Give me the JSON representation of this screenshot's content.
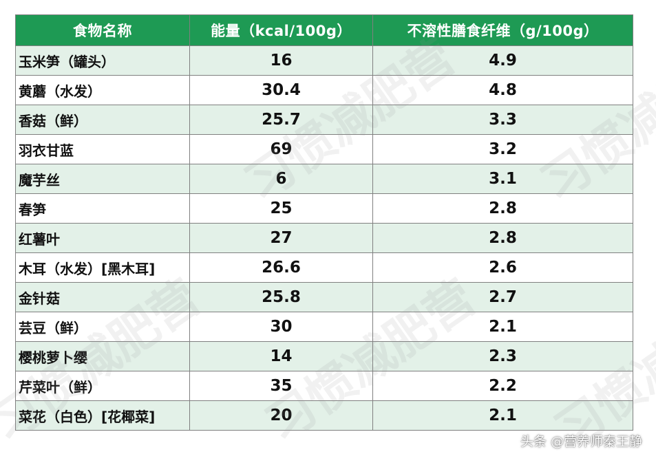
{
  "table": {
    "headers": [
      "食物名称",
      "能量（kcal/100g）",
      "不溶性膳食纤维（g/100g）"
    ],
    "rows": [
      {
        "name": "玉米笋（罐头）",
        "energy": "16",
        "fiber": "4.9"
      },
      {
        "name": "黄蘑（水发）",
        "energy": "30.4",
        "fiber": "4.8"
      },
      {
        "name": "香菇（鲜）",
        "energy": "25.7",
        "fiber": "3.3"
      },
      {
        "name": "羽衣甘蓝",
        "energy": "69",
        "fiber": "3.2"
      },
      {
        "name": "魔芋丝",
        "energy": "6",
        "fiber": "3.1"
      },
      {
        "name": "春笋",
        "energy": "25",
        "fiber": "2.8"
      },
      {
        "name": "红薯叶",
        "energy": "27",
        "fiber": "2.8"
      },
      {
        "name": "木耳（水发）[黑木耳]",
        "energy": "26.6",
        "fiber": "2.6"
      },
      {
        "name": "金针菇",
        "energy": "25.8",
        "fiber": "2.7"
      },
      {
        "name": "芸豆（鲜）",
        "energy": "30",
        "fiber": "2.1"
      },
      {
        "name": "樱桃萝卜缨",
        "energy": "14",
        "fiber": "2.3"
      },
      {
        "name": "芹菜叶（鲜）",
        "energy": "35",
        "fiber": "2.2"
      },
      {
        "name": "菜花（白色）[花椰菜]",
        "energy": "20",
        "fiber": "2.1"
      }
    ]
  },
  "watermark": "习惯减肥营",
  "credit": "头条 @营养师秦王静",
  "colors": {
    "header_bg": "#1e9a54",
    "row_alt_bg": "#e3f1e8",
    "border": "#7f7f7f"
  }
}
